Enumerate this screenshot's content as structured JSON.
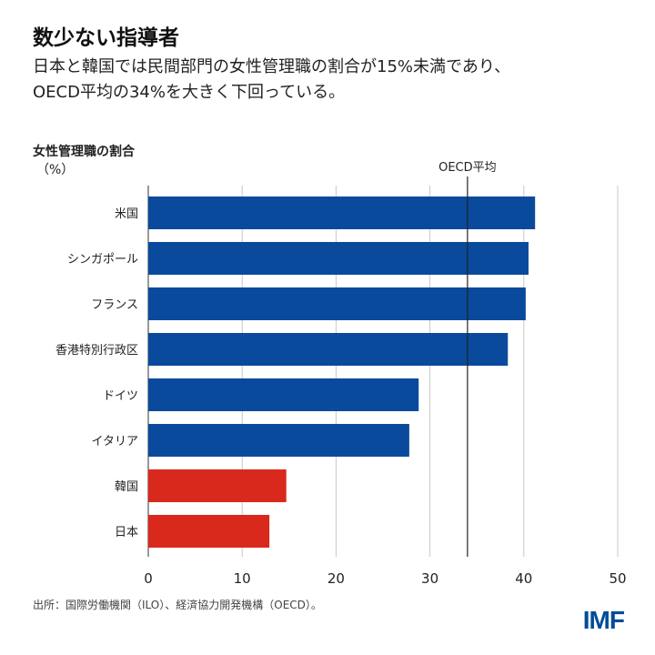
{
  "title": "数少ない指導者",
  "subtitle_line1": "日本と韓国では民間部門の女性管理職の割合が15%未満であり、",
  "subtitle_line2": "OECD平均の34%を大きく下回っている。",
  "source": "出所：国際労働機関（ILO）、経済協力開発機構（OECD）。",
  "logo": "IMF",
  "colors": {
    "blue": "#0a4a9c",
    "red": "#d9291c"
  },
  "chart_data": {
    "type": "bar",
    "orientation": "horizontal",
    "ylabel": "女性管理職の割合",
    "unit": "（%）",
    "categories": [
      "米国",
      "シンガポール",
      "フランス",
      "香港特別行政区",
      "ドイツ",
      "イタリア",
      "韓国",
      "日本"
    ],
    "values": [
      41.2,
      40.5,
      40.2,
      38.3,
      28.8,
      27.8,
      14.7,
      12.9
    ],
    "highlight": [
      "blue",
      "blue",
      "blue",
      "blue",
      "blue",
      "blue",
      "red",
      "red"
    ],
    "xlim": [
      0,
      50
    ],
    "xticks": [
      0,
      10,
      20,
      30,
      40,
      50
    ],
    "grid": true,
    "reference_line": {
      "label": "OECD平均",
      "value": 34
    }
  }
}
